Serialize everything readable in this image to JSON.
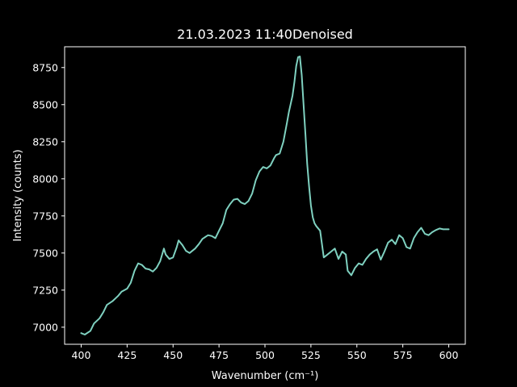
{
  "chart_data": {
    "type": "line",
    "title": "21.03.2023 11:40Denoised",
    "xlabel": "Wavenumber (cm⁻¹)",
    "ylabel": "Intensity (counts)",
    "xlim": [
      391,
      609
    ],
    "ylim": [
      6885,
      8890
    ],
    "xticks": [
      400,
      425,
      450,
      475,
      500,
      525,
      550,
      575,
      600
    ],
    "yticks": [
      7000,
      7250,
      7500,
      7750,
      8000,
      8250,
      8500,
      8750
    ],
    "grid": false,
    "line_color": "#7fd1c0",
    "background": "#000000",
    "series": [
      {
        "x": [
          400,
          402,
          405,
          407,
          410,
          412,
          414,
          417,
          420,
          422,
          425,
          427,
          429,
          431,
          433,
          435,
          437,
          439,
          441,
          443,
          445,
          446,
          448,
          450,
          452,
          453,
          455,
          457,
          459,
          462,
          464,
          466,
          469,
          471,
          473,
          475,
          477,
          479,
          481,
          483,
          485,
          487,
          489,
          491,
          493,
          495,
          497,
          499,
          501,
          503,
          505,
          506,
          508,
          510,
          512,
          513,
          515,
          516,
          517,
          518,
          519,
          520,
          521,
          522,
          523,
          524,
          525,
          526,
          527,
          528,
          530,
          532,
          534,
          536,
          538,
          540,
          542,
          544,
          545,
          547,
          549,
          551,
          553,
          555,
          557,
          559,
          561,
          563,
          565,
          567,
          569,
          571,
          573,
          575,
          577,
          579,
          581,
          583,
          585,
          587,
          589,
          591,
          593,
          595,
          597,
          600
        ],
        "y": [
          6960,
          6950,
          6975,
          7025,
          7060,
          7100,
          7150,
          7175,
          7210,
          7240,
          7260,
          7300,
          7380,
          7430,
          7420,
          7395,
          7390,
          7375,
          7400,
          7445,
          7530,
          7490,
          7460,
          7470,
          7540,
          7585,
          7555,
          7515,
          7500,
          7530,
          7560,
          7595,
          7620,
          7615,
          7600,
          7650,
          7700,
          7790,
          7830,
          7860,
          7865,
          7840,
          7830,
          7850,
          7900,
          7990,
          8050,
          8080,
          8070,
          8090,
          8140,
          8160,
          8170,
          8250,
          8380,
          8450,
          8560,
          8650,
          8760,
          8820,
          8825,
          8700,
          8500,
          8300,
          8100,
          7950,
          7820,
          7740,
          7700,
          7680,
          7650,
          7470,
          7490,
          7510,
          7530,
          7460,
          7510,
          7490,
          7380,
          7350,
          7400,
          7430,
          7420,
          7460,
          7490,
          7510,
          7525,
          7455,
          7510,
          7570,
          7590,
          7560,
          7620,
          7600,
          7540,
          7530,
          7600,
          7640,
          7670,
          7630,
          7620,
          7640,
          7655,
          7665,
          7660,
          7660
        ]
      }
    ]
  }
}
